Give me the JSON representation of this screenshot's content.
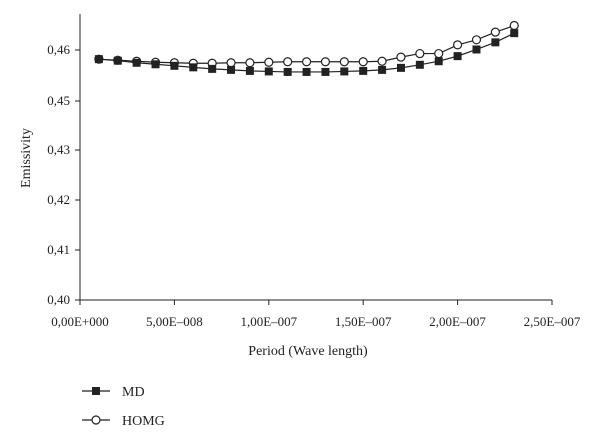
{
  "chart_data": {
    "type": "line",
    "xlabel": "Period (Wave length)",
    "ylabel": "Emissivity",
    "xlim": [
      0,
      2.5e-07
    ],
    "ylim": [
      0.4,
      0.465
    ],
    "x_ticks": [
      0,
      5e-08,
      1e-07,
      1.5e-07,
      2e-07,
      2.5e-07
    ],
    "x_tick_labels": [
      "0,00E+000",
      "5,00E–008",
      "1,00E–007",
      "1,50E–007",
      "2,00E–007",
      "2,50E–007"
    ],
    "y_ticks": [
      0.4,
      0.41,
      0.42,
      0.43,
      0.45,
      0.46
    ],
    "y_tick_labels": [
      "0,40",
      "0,41",
      "0,42",
      "0,43",
      "0,45",
      "0,46"
    ],
    "grid": false,
    "legend_position": "bottom-left",
    "x": [
      1e-08,
      2e-08,
      3e-08,
      4e-08,
      5e-08,
      6e-08,
      7e-08,
      8e-08,
      9e-08,
      1e-07,
      1.1e-07,
      1.2e-07,
      1.3e-07,
      1.4e-07,
      1.5e-07,
      1.6e-07,
      1.7e-07,
      1.8e-07,
      1.9e-07,
      2e-07,
      2.1e-07,
      2.2e-07,
      2.3e-07
    ],
    "series": [
      {
        "name": "MD",
        "marker": "filled-square",
        "color": "#222222",
        "values": [
          0.4582,
          0.4579,
          0.4575,
          0.4572,
          0.4569,
          0.4566,
          0.4563,
          0.4561,
          0.4559,
          0.4558,
          0.4557,
          0.4557,
          0.4557,
          0.4558,
          0.4559,
          0.4561,
          0.4565,
          0.4571,
          0.4578,
          0.4588,
          0.4601,
          0.4615,
          0.4633
        ]
      },
      {
        "name": "HOMG",
        "marker": "open-circle",
        "color": "#222222",
        "values": [
          0.4582,
          0.458,
          0.4578,
          0.4576,
          0.4575,
          0.4574,
          0.4574,
          0.4575,
          0.4575,
          0.4576,
          0.4577,
          0.4577,
          0.4577,
          0.4577,
          0.4577,
          0.4578,
          0.4586,
          0.4593,
          0.4593,
          0.461,
          0.462,
          0.4635,
          0.4648
        ]
      }
    ]
  }
}
